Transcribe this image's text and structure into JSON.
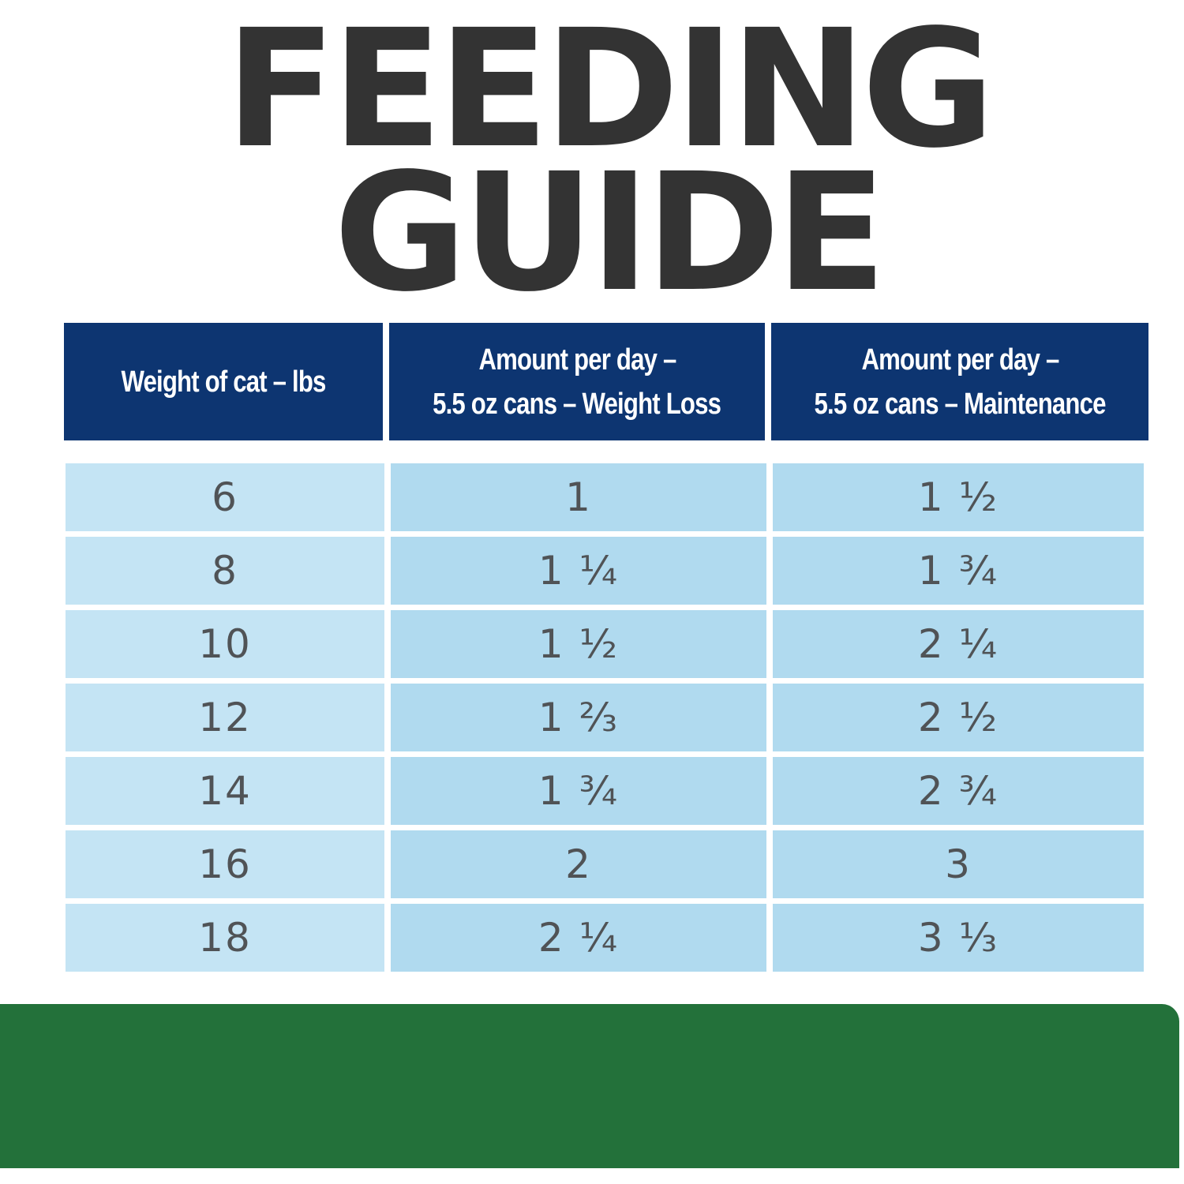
{
  "title": {
    "line1": "FEEDING",
    "line2": "GUIDE"
  },
  "table": {
    "headers": [
      {
        "lines": [
          "Weight of cat – lbs"
        ]
      },
      {
        "lines": [
          "Amount per day –",
          "5.5 oz cans – Weight Loss"
        ]
      },
      {
        "lines": [
          "Amount per day –",
          "5.5 oz cans – Maintenance"
        ]
      }
    ],
    "rows": [
      {
        "weight": "6",
        "weight_loss": "1",
        "maintenance": "1 ½"
      },
      {
        "weight": "8",
        "weight_loss": "1 ¼",
        "maintenance": "1 ¾"
      },
      {
        "weight": "10",
        "weight_loss": "1 ½",
        "maintenance": "2 ¼"
      },
      {
        "weight": "12",
        "weight_loss": "1 ⅔",
        "maintenance": "2 ½"
      },
      {
        "weight": "14",
        "weight_loss": "1 ¾",
        "maintenance": "2 ¾"
      },
      {
        "weight": "16",
        "weight_loss": "2",
        "maintenance": "3"
      },
      {
        "weight": "18",
        "weight_loss": "2 ¼",
        "maintenance": "3 ⅓"
      }
    ]
  },
  "colors": {
    "title": "#333333",
    "header_bg": "#0d3571",
    "header_text": "#ffffff",
    "cell_light": "#c4e4f4",
    "cell_medium": "#b0daef",
    "cell_text": "#505356",
    "footer_band": "#23713a"
  }
}
